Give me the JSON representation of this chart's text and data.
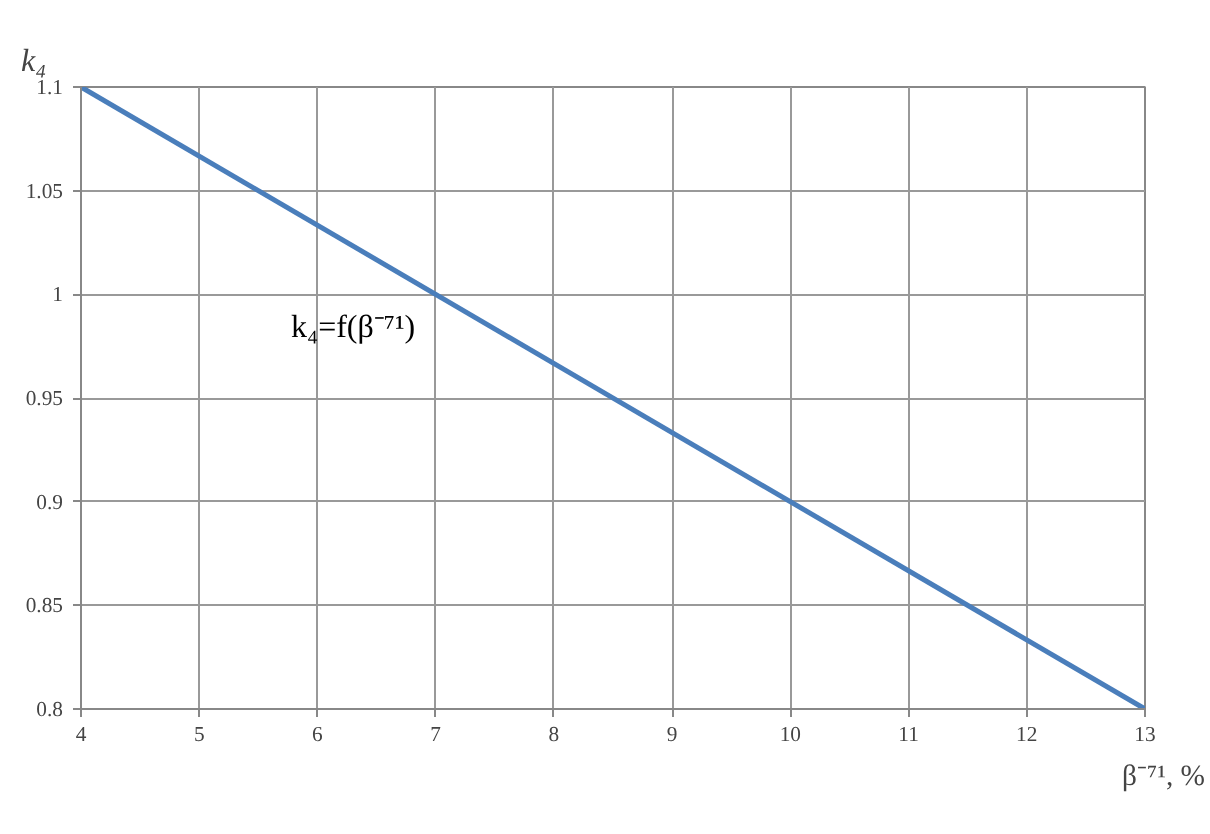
{
  "chart_data": {
    "type": "line",
    "xlabel": "β⁻⁷¹, %",
    "ylabel": "k₄",
    "x": [
      4,
      13
    ],
    "series": [
      {
        "name": "k₄=f(β⁻⁷¹)",
        "color": "#4a7ebb",
        "values": [
          1.1,
          0.8
        ]
      }
    ],
    "xlim": [
      4,
      13
    ],
    "xticks": [
      4,
      5,
      6,
      7,
      8,
      9,
      10,
      11,
      12,
      13
    ],
    "ylim": [
      0.8,
      1.1
    ],
    "yticks": [
      0.8,
      0.85,
      0.9,
      0.95,
      1,
      1.05,
      1.1
    ],
    "grid": true,
    "marker": "none",
    "line_style": "solid"
  }
}
